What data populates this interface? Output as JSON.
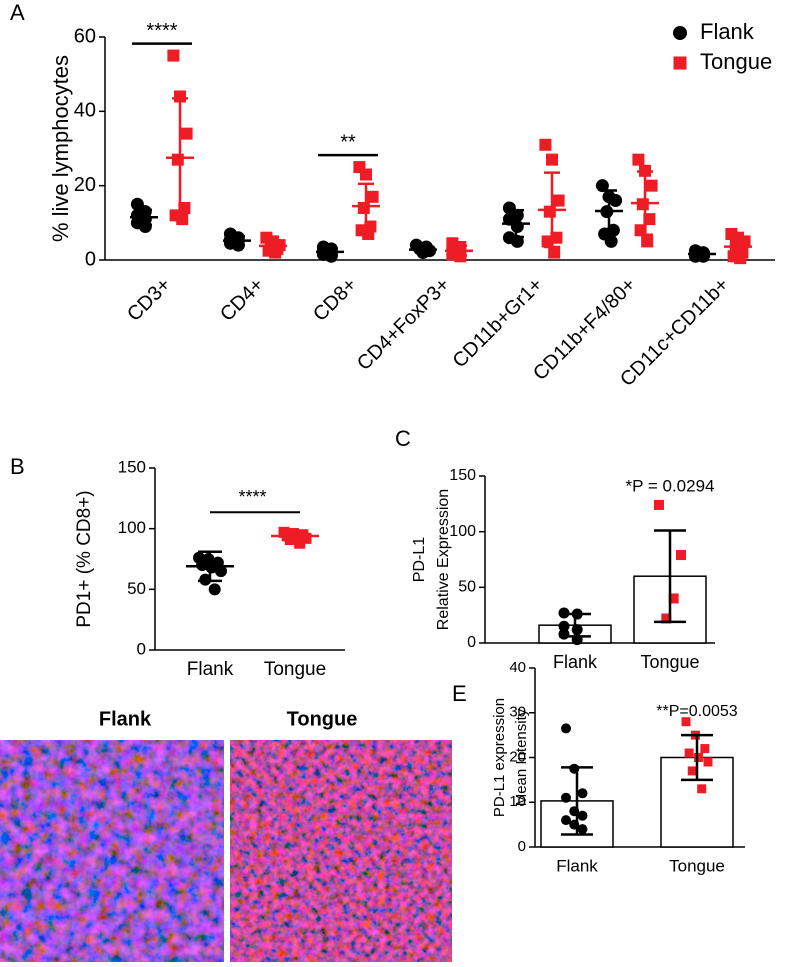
{
  "chart_data": [
    {
      "panel": "A",
      "type": "scatter",
      "ylabel": "% live lymphocytes",
      "ylim": [
        0,
        60
      ],
      "yticks": [
        0,
        20,
        40,
        60
      ],
      "legend": "upper right",
      "categories": [
        "CD3+",
        "CD4+",
        "CD8+",
        "CD4+FoxP3+",
        "CD11b+Gr1+",
        "CD11b+F4/80+",
        "CD11c+CD11b+"
      ],
      "series": [
        {
          "name": "Flank",
          "color": "#000000",
          "marker": "circle",
          "points": [
            [
              15,
              13,
              12,
              11,
              10,
              9
            ],
            [
              7,
              6,
              5.5,
              5,
              4.5,
              4
            ],
            [
              3.5,
              3,
              2.5,
              2,
              1.5,
              1
            ],
            [
              4,
              3.5,
              3,
              2.5,
              2
            ],
            [
              14,
              12,
              11,
              9,
              6,
              5
            ],
            [
              20,
              17,
              16,
              13,
              8,
              7,
              5
            ],
            [
              2.5,
              2,
              1.5,
              1.5,
              1,
              1
            ]
          ],
          "mean": [
            11.5,
            5.2,
            2.2,
            2.8,
            9.8,
            13.2,
            1.6
          ],
          "sd": [
            2,
            1.2,
            0.8,
            0.6,
            3.6,
            5.5,
            0.6
          ]
        },
        {
          "name": "Tongue",
          "color": "#ee1c25",
          "marker": "square",
          "points": [
            [
              55,
              44,
              34,
              27,
              14,
              12,
              11
            ],
            [
              6,
              5,
              4,
              3.5,
              3,
              2.5,
              2
            ],
            [
              25,
              23,
              17,
              14,
              9,
              8,
              7
            ],
            [
              4.5,
              3.5,
              2.5,
              2,
              1.5,
              1
            ],
            [
              31,
              27,
              16,
              13,
              6,
              5,
              2
            ],
            [
              27,
              24,
              20,
              15,
              11,
              8,
              5
            ],
            [
              7,
              6,
              5,
              4,
              2,
              1,
              0.5
            ]
          ],
          "mean": [
            27.5,
            3.8,
            14.5,
            2.5,
            13.5,
            15.3,
            3.6
          ],
          "sd": [
            16,
            1.5,
            6,
            1.3,
            10,
            8.5,
            2.6
          ]
        }
      ],
      "annotations": [
        {
          "text": "****",
          "category": "CD3+"
        },
        {
          "text": "**",
          "category": "CD8+"
        }
      ]
    },
    {
      "panel": "B",
      "type": "scatter",
      "ylabel": "PD1+ (% CD8+)",
      "ylim": [
        0,
        150
      ],
      "yticks": [
        0,
        50,
        100,
        150
      ],
      "groups": [
        {
          "name": "Flank",
          "color": "#000000",
          "marker": "circle",
          "points": [
            76,
            75,
            72,
            70,
            68,
            65,
            58,
            50
          ],
          "mean": 69,
          "sd": 12
        },
        {
          "name": "Tongue",
          "color": "#ee1c25",
          "marker": "square",
          "points": [
            97,
            96,
            95,
            94,
            93,
            92,
            91,
            88
          ],
          "mean": 94,
          "sd": 3
        }
      ],
      "annotations": [
        {
          "text": "****"
        }
      ]
    },
    {
      "panel": "C",
      "type": "bar",
      "ylabel": [
        "PD-L1",
        "Relative Expression"
      ],
      "ylim": [
        0,
        150
      ],
      "yticks": [
        0,
        50,
        100,
        150
      ],
      "groups": [
        {
          "name": "Flank",
          "color": "#000000",
          "marker": "circle",
          "points": [
            27,
            26,
            15,
            12,
            8,
            3
          ],
          "mean": 16,
          "sd": 10
        },
        {
          "name": "Tongue",
          "color": "#ee1c25",
          "marker": "square",
          "points": [
            124,
            79,
            40,
            22
          ],
          "mean": 60,
          "sd": 41
        }
      ],
      "annotations": [
        {
          "text": "*P = 0.0294"
        }
      ]
    },
    {
      "panel": "E",
      "type": "bar",
      "ylabel": [
        "PD-L1 expression",
        "Mean Intensity"
      ],
      "ylim": [
        0,
        40
      ],
      "yticks": [
        0,
        10,
        20,
        30,
        40
      ],
      "groups": [
        {
          "name": "Flank",
          "color": "#000000",
          "marker": "circle",
          "points": [
            26.5,
            17.5,
            12,
            11,
            8,
            7,
            6,
            5,
            4
          ],
          "mean": 10.3,
          "sd": 7.5
        },
        {
          "name": "Tongue",
          "color": "#ee1c25",
          "marker": "square",
          "points": [
            28,
            25,
            22,
            21,
            20,
            19,
            17,
            13
          ],
          "mean": 20,
          "sd": 5
        }
      ],
      "annotations": [
        {
          "text": "**P=0.0053"
        }
      ]
    }
  ],
  "images": {
    "panel": "D",
    "titles": [
      "Flank",
      "Tongue"
    ]
  }
}
